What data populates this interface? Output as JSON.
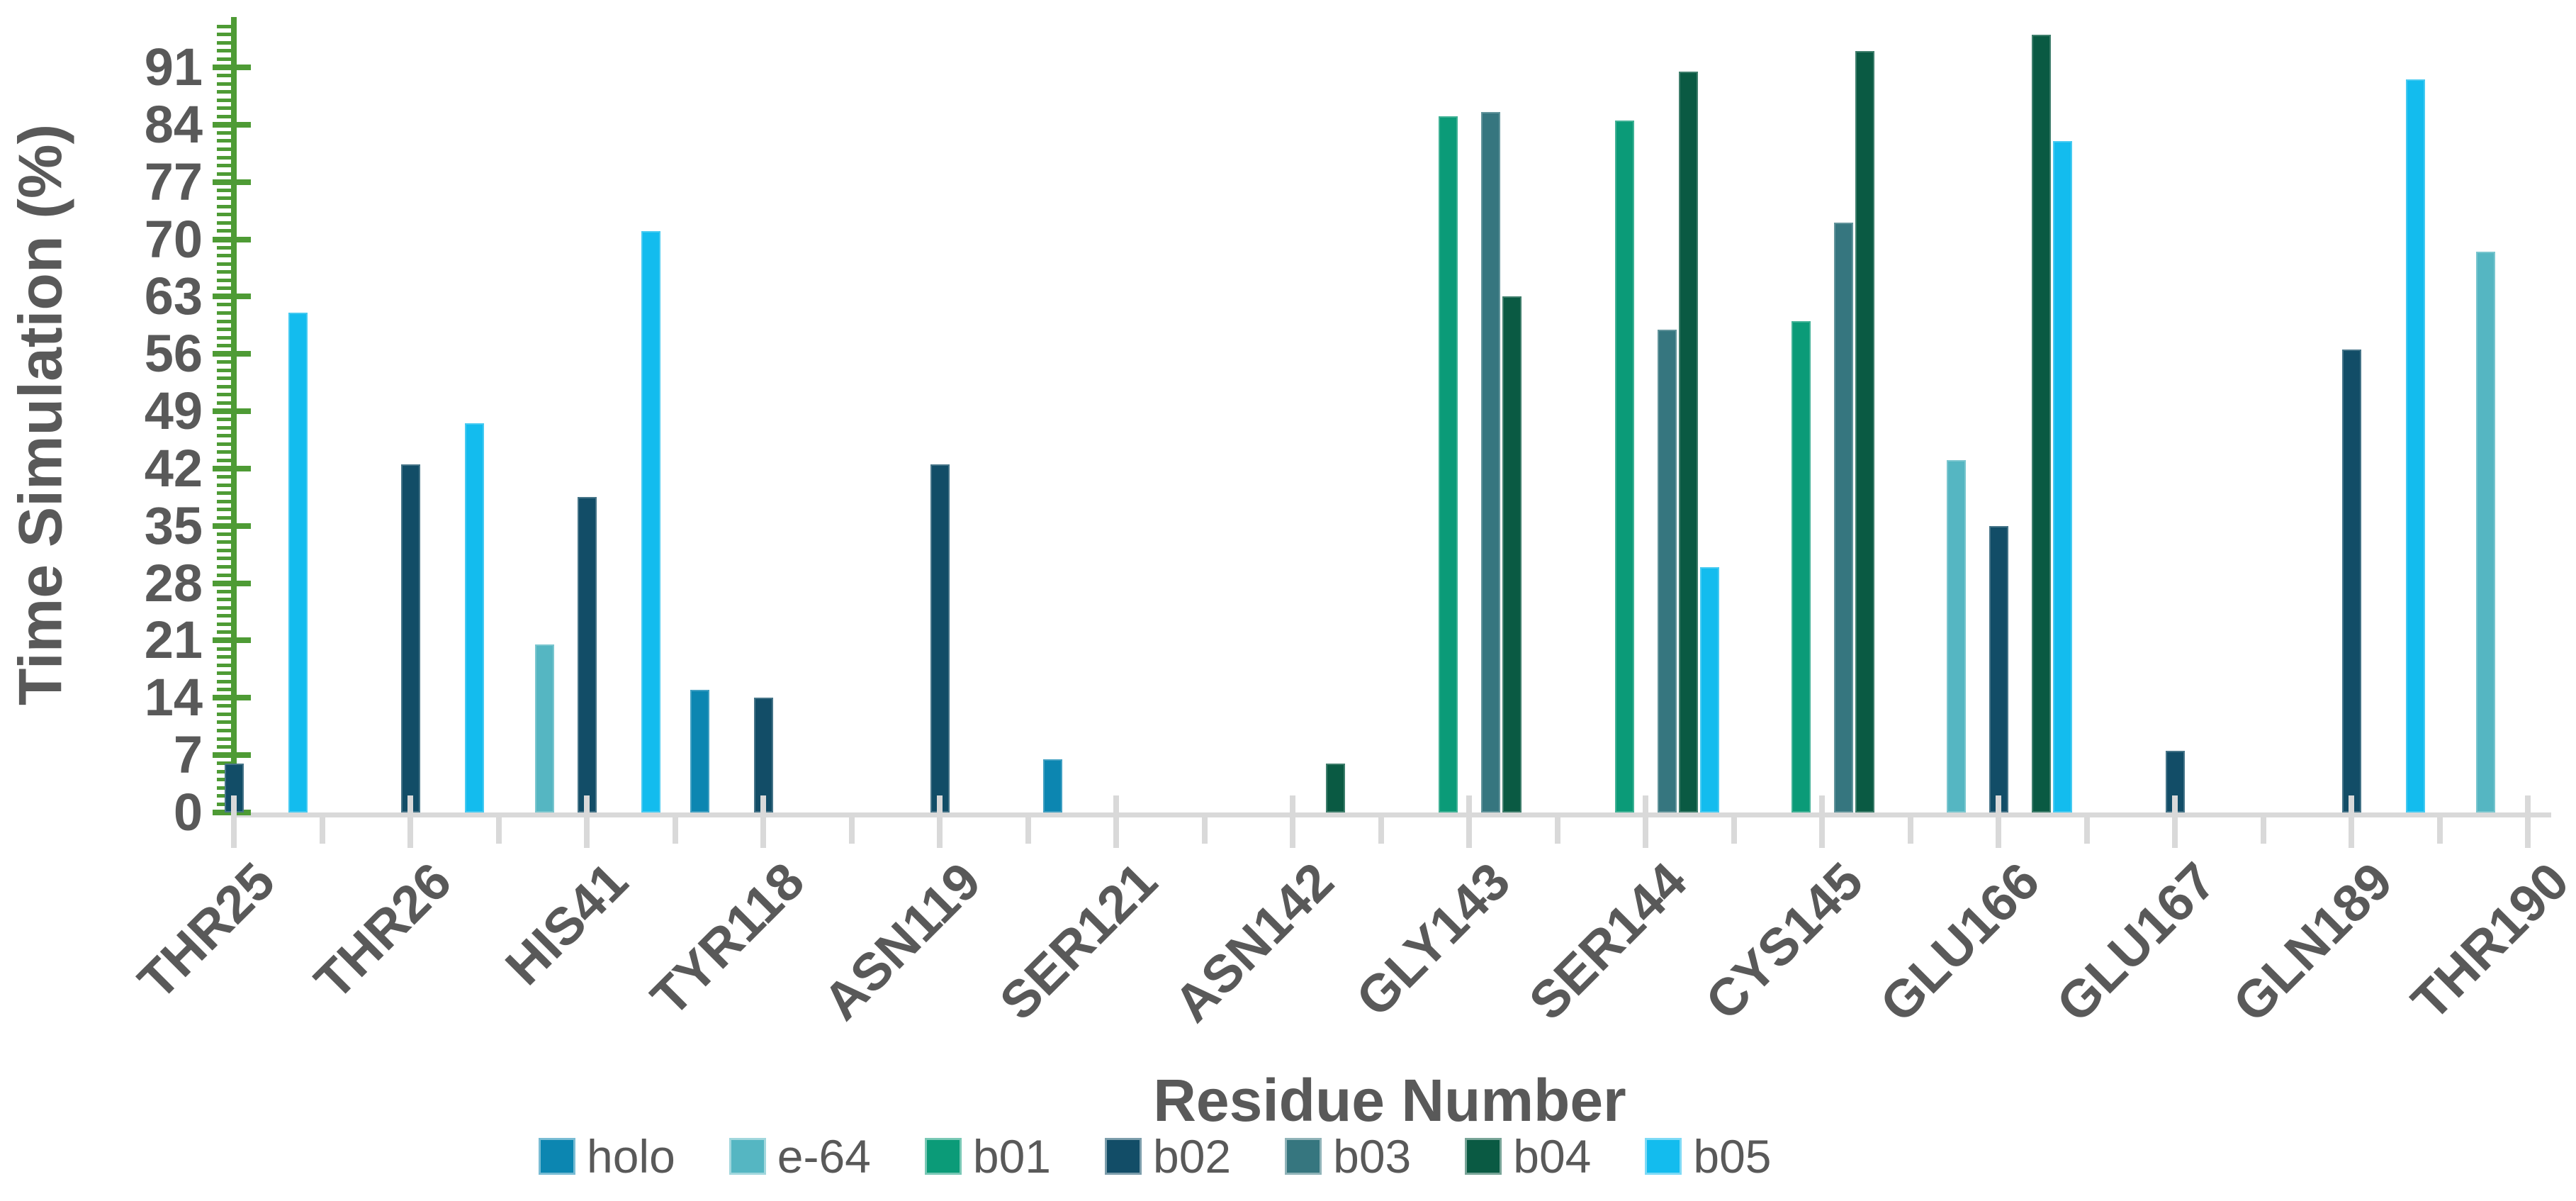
{
  "chart_data": {
    "type": "bar",
    "title": "",
    "ylabel": "Time Simulation (%)",
    "xlabel": "Residue Number",
    "ylim": [
      0,
      97
    ],
    "y_major_tick_step": 7,
    "y_major_tick_max": 91,
    "y_minor_tick_step": 1,
    "y_tick_labels": [
      "0",
      "7",
      "14",
      "21",
      "28",
      "35",
      "42",
      "49",
      "56",
      "63",
      "70",
      "77",
      "84",
      "91"
    ],
    "grid": "off",
    "legend_position": "bottom",
    "categories": [
      "THR25",
      "THR26",
      "HIS41",
      "TYR118",
      "ASN119",
      "SER121",
      "ASN142",
      "GLY143",
      "SER144",
      "CYS145",
      "GLU166",
      "GLU167",
      "GLN189",
      "THR190"
    ],
    "series": [
      {
        "name": "holo",
        "color": "#0C86B1",
        "values": [
          null,
          null,
          null,
          15,
          null,
          6.5,
          null,
          null,
          null,
          null,
          null,
          null,
          null,
          null
        ]
      },
      {
        "name": "e-64",
        "color": "#55B6C2",
        "values": [
          null,
          null,
          20.5,
          null,
          null,
          null,
          null,
          null,
          null,
          null,
          43,
          null,
          null,
          68.5
        ]
      },
      {
        "name": "b01",
        "color": "#0B9B78",
        "values": [
          null,
          null,
          null,
          null,
          null,
          null,
          null,
          85,
          84.5,
          60,
          null,
          null,
          null,
          null
        ]
      },
      {
        "name": "b02",
        "color": "#124D67",
        "values": [
          6,
          42.5,
          38.5,
          14,
          42.5,
          null,
          null,
          null,
          null,
          null,
          35,
          7.5,
          56.5,
          null
        ]
      },
      {
        "name": "b03",
        "color": "#36767F",
        "values": [
          null,
          null,
          null,
          null,
          null,
          null,
          null,
          85.5,
          59,
          72,
          null,
          null,
          null,
          null
        ]
      },
      {
        "name": "b04",
        "color": "#0A5A43",
        "values": [
          null,
          null,
          null,
          null,
          null,
          null,
          6,
          63,
          90.5,
          93,
          95,
          null,
          null,
          null
        ]
      },
      {
        "name": "b05",
        "color": "#13BCEE",
        "values": [
          61,
          47.5,
          71,
          null,
          null,
          null,
          null,
          null,
          30,
          null,
          82,
          null,
          89.5,
          null
        ]
      }
    ]
  },
  "colors": {
    "y_axis_green": "#4E9B35",
    "x_axis_gray": "#D9D9D9",
    "text_gray": "#595959",
    "background": "#FFFFFF"
  }
}
